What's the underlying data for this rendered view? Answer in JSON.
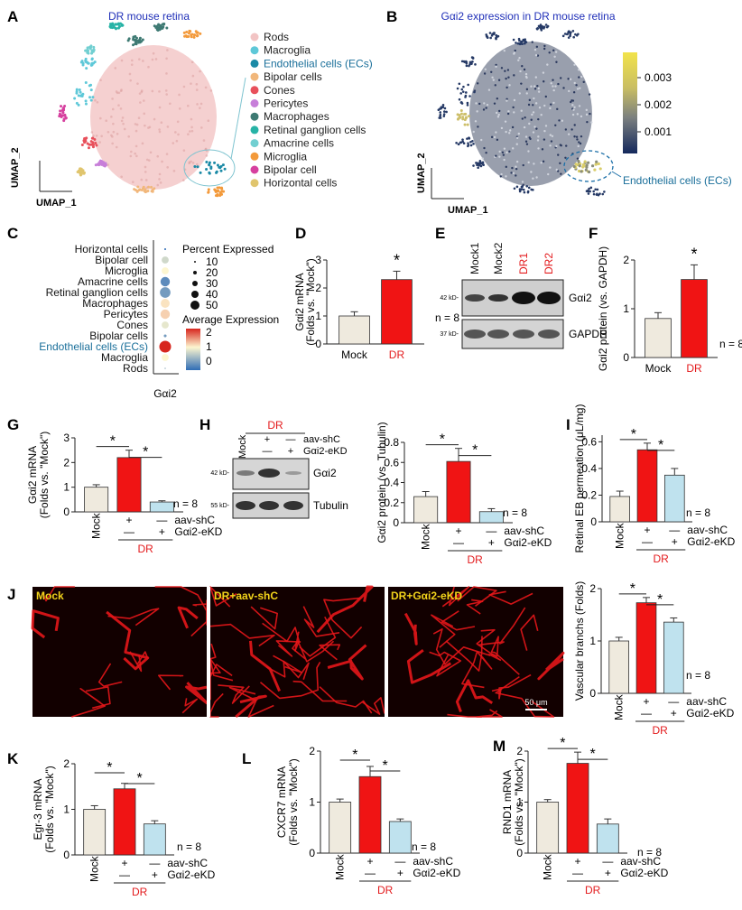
{
  "labels": {
    "A": "A",
    "B": "B",
    "C": "C",
    "D": "D",
    "E": "E",
    "F": "F",
    "G": "G",
    "H": "H",
    "I": "I",
    "J": "J",
    "K": "K",
    "L": "L",
    "M": "M"
  },
  "panelA": {
    "title": "DR mouse retina",
    "xlabel": "UMAP_1",
    "ylabel": "UMAP_2",
    "legend": [
      {
        "name": "Rods",
        "color": "#f2c4c4"
      },
      {
        "name": "Macroglia",
        "color": "#5ec8d8"
      },
      {
        "name": "Endothelial cells (ECs)",
        "color": "#1b8aa6",
        "highlight": true
      },
      {
        "name": "Bipolar cells",
        "color": "#f1b77b"
      },
      {
        "name": "Cones",
        "color": "#e8505b"
      },
      {
        "name": "Pericytes",
        "color": "#c77fd9"
      },
      {
        "name": "Macrophages",
        "color": "#3e7a73"
      },
      {
        "name": "Retinal ganglion cells",
        "color": "#27b3a6"
      },
      {
        "name": "Amacrine cells",
        "color": "#71cfd1"
      },
      {
        "name": "Microglia",
        "color": "#f39a3b"
      },
      {
        "name": "Bipolar cell",
        "color": "#d6409f"
      },
      {
        "name": "Horizontal cells",
        "color": "#e0c56e"
      }
    ]
  },
  "panelB": {
    "title": "Gαi2 expression in DR mouse retina",
    "xlabel": "UMAP_1",
    "ylabel": "UMAP_2",
    "colorbar_ticks": [
      "0.003",
      "0.002",
      "0.001"
    ],
    "annotation": "Endothelial cells (ECs)"
  },
  "panelC": {
    "rows": [
      "Horizontal cells",
      "Bipolar cell",
      "Microglia",
      "Amacrine cells",
      "Retinal ganglion cells",
      "Macrophages",
      "Pericytes",
      "Cones",
      "Bipolar cells",
      "Endothelial cells (ECs)",
      "Macroglia",
      "Rods"
    ],
    "pct_expressed": [
      8,
      30,
      30,
      40,
      45,
      38,
      40,
      30,
      12,
      50,
      30,
      4
    ],
    "avg_expression": [
      0.0,
      0.7,
      0.9,
      0.2,
      0.3,
      1.0,
      1.1,
      0.8,
      0.3,
      2.0,
      0.9,
      0.5
    ],
    "xlabel": "Gαi2",
    "pct_title": "Percent Expressed",
    "pct_legend": [
      "10",
      "20",
      "30",
      "40",
      "50"
    ],
    "avg_title": "Average Expression",
    "avg_ticks": [
      "2",
      "1",
      "0"
    ]
  },
  "panelE": {
    "lanes": [
      "Mock1",
      "Mock2",
      "DR1",
      "DR2"
    ],
    "bands": [
      "Gαi2",
      "GAPDH"
    ],
    "mw": [
      "42 kD-",
      "37 kD-"
    ]
  },
  "panelH_blot": {
    "group": "DR",
    "col_label": "Mock",
    "row1_label": "aav-shC",
    "row1": [
      "+",
      "—"
    ],
    "row2_label": "Gαi2-eKD",
    "row2": [
      "—",
      "+"
    ],
    "bands": [
      "Gαi2",
      "Tubulin"
    ],
    "mw": [
      "42 kD-",
      "55 kD-"
    ]
  },
  "panelJ": {
    "images": [
      "Mock",
      "DR+aav-shC",
      "DR+Gαi2-eKD"
    ],
    "scalebar": "50 μm"
  },
  "chart_data": [
    {
      "id": "D",
      "type": "bar",
      "categories": [
        "Mock",
        "DR"
      ],
      "values": [
        1.0,
        2.3
      ],
      "errors": [
        0.15,
        0.3
      ],
      "ylabel": "Gαi2 mRNA",
      "ylabel2": "(Folds vs. \"Mock\")",
      "ylim": [
        0,
        3
      ],
      "ticks": [
        "0",
        "1",
        "2",
        "3"
      ],
      "n": "n = 8",
      "stars": [
        "*"
      ]
    },
    {
      "id": "F",
      "type": "bar",
      "categories": [
        "Mock",
        "DR"
      ],
      "values": [
        0.8,
        1.6
      ],
      "errors": [
        0.12,
        0.3
      ],
      "ylabel": "Gαi2 protein (vs. GAPDH)",
      "ylim": [
        0,
        2
      ],
      "ticks": [
        "0",
        "1",
        "2"
      ],
      "n": "n = 8",
      "stars": [
        "*"
      ]
    },
    {
      "id": "G",
      "type": "bar",
      "categories": [
        "Mock",
        "+/—",
        "—/+"
      ],
      "values": [
        1.0,
        2.2,
        0.4
      ],
      "errors": [
        0.1,
        0.3,
        0.05
      ],
      "ylabel": "Gαi2 mRNA",
      "ylabel2": "(Folds vs. \"Mock\")",
      "ylim": [
        0,
        3
      ],
      "ticks": [
        "0",
        "1",
        "2",
        "3"
      ],
      "n": "n = 8",
      "stars": [
        "*",
        "*"
      ],
      "group": "DR",
      "row1": [
        "+",
        "—"
      ],
      "row1_label": "aav-shC",
      "row2": [
        "—",
        "+"
      ],
      "row2_label": "Gαi2-eKD",
      "mock": "Mock"
    },
    {
      "id": "H",
      "type": "bar",
      "categories": [
        "Mock",
        "+/—",
        "—/+"
      ],
      "values": [
        0.26,
        0.61,
        0.11
      ],
      "errors": [
        0.05,
        0.13,
        0.03
      ],
      "ylabel": "Gαi2 protein (vs. Tubulin)",
      "ylim": [
        0,
        0.8
      ],
      "ticks": [
        "0",
        "0.2",
        "0.4",
        "0.6",
        "0.8"
      ],
      "n": "n = 8",
      "stars": [
        "*",
        "*"
      ],
      "group": "DR",
      "row1": [
        "+",
        "—"
      ],
      "row1_label": "aav-shC",
      "row2": [
        "—",
        "+"
      ],
      "row2_label": "Gαi2-eKD",
      "mock": "Mock"
    },
    {
      "id": "I",
      "type": "bar",
      "categories": [
        "Mock",
        "+/—",
        "—/+"
      ],
      "values": [
        0.19,
        0.54,
        0.35
      ],
      "errors": [
        0.04,
        0.05,
        0.05
      ],
      "ylabel": "Retinal EB permeation (μL/mg)",
      "ylim": [
        0,
        0.65
      ],
      "ticks": [
        "0",
        "0.2",
        "0.4",
        "0.6"
      ],
      "n": "n = 8",
      "stars": [
        "*",
        "*"
      ],
      "group": "DR",
      "row1": [
        "+",
        "—"
      ],
      "row1_label": "aav-shC",
      "row2": [
        "—",
        "+"
      ],
      "row2_label": "Gαi2-eKD",
      "mock": "Mock"
    },
    {
      "id": "J",
      "type": "bar",
      "categories": [
        "Mock",
        "+/—",
        "—/+"
      ],
      "values": [
        1.0,
        1.73,
        1.36
      ],
      "errors": [
        0.07,
        0.1,
        0.08
      ],
      "ylabel": "Vascular branchs (Folds)",
      "ylim": [
        0,
        2
      ],
      "ticks": [
        "0",
        "1",
        "2"
      ],
      "n": "n = 8",
      "stars": [
        "*",
        "*"
      ],
      "group": "DR",
      "row1": [
        "+",
        "—"
      ],
      "row1_label": "aav-shC",
      "row2": [
        "—",
        "+"
      ],
      "row2_label": "Gαi2-eKD",
      "mock": "Mock"
    },
    {
      "id": "K",
      "type": "bar",
      "categories": [
        "Mock",
        "+/—",
        "—/+"
      ],
      "values": [
        1.0,
        1.45,
        0.68
      ],
      "errors": [
        0.08,
        0.12,
        0.07
      ],
      "ylabel": "Egr-3 mRNA",
      "ylabel2": "(Folds vs. \"Mock\")",
      "ylim": [
        0,
        2
      ],
      "ticks": [
        "0",
        "1",
        "2"
      ],
      "n": "n = 8",
      "stars": [
        "*",
        "*"
      ],
      "group": "DR",
      "row1": [
        "+",
        "—"
      ],
      "row1_label": "aav-shC",
      "row2": [
        "—",
        "+"
      ],
      "row2_label": "Gαi2-eKD",
      "mock": "Mock"
    },
    {
      "id": "L",
      "type": "bar",
      "categories": [
        "Mock",
        "+/—",
        "—/+"
      ],
      "values": [
        1.0,
        1.5,
        0.62
      ],
      "errors": [
        0.06,
        0.2,
        0.05
      ],
      "ylabel": "CXCR7 mRNA",
      "ylabel2": "(Folds vs. \"Mock\")",
      "ylim": [
        0,
        2
      ],
      "ticks": [
        "0",
        "1",
        "2"
      ],
      "n": "n = 8",
      "stars": [
        "*",
        "*"
      ],
      "group": "DR",
      "row1": [
        "+",
        "—"
      ],
      "row1_label": "aav-shC",
      "row2": [
        "—",
        "+"
      ],
      "row2_label": "Gαi2-eKD",
      "mock": "Mock"
    },
    {
      "id": "M",
      "type": "bar",
      "categories": [
        "Mock",
        "+/—",
        "—/+"
      ],
      "values": [
        1.0,
        1.76,
        0.57
      ],
      "errors": [
        0.05,
        0.22,
        0.1
      ],
      "ylabel": "RND1 mRNA",
      "ylabel2": "(Folds vs. \"Mock\")",
      "ylim": [
        0,
        2
      ],
      "ticks": [
        "0",
        "1",
        "2"
      ],
      "n": "n = 8",
      "stars": [
        "*",
        "*"
      ],
      "group": "DR",
      "row1": [
        "+",
        "—"
      ],
      "row1_label": "aav-shC",
      "row2": [
        "—",
        "+"
      ],
      "row2_label": "Gαi2-eKD",
      "mock": "Mock"
    }
  ],
  "colors": {
    "mock": "#efeade",
    "dr": "#f01414",
    "ekd": "#bfe2ee",
    "red_text": "#e31a1c",
    "blue_text": "#1f4db8",
    "teal_text": "#1a6f9a"
  }
}
